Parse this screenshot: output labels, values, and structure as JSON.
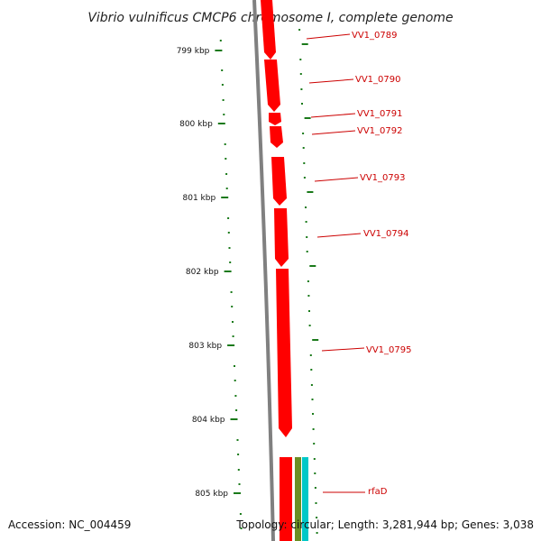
{
  "title": "Vibrio vulnificus CMCP6 chromosome I, complete genome",
  "footer": {
    "accession": "Accession: NC_004459",
    "summary": "Topology: circular; Length: 3,281,944 bp; Genes: 3,038"
  },
  "colors": {
    "gene": "#ff0000",
    "tick": "#1a7a1a",
    "backbone": "#808080",
    "label": "#cc0000",
    "feature_olive": "#6b8e23",
    "feature_cyan": "#00c8c8"
  },
  "ticks": [
    "799 kbp",
    "800 kbp",
    "801 kbp",
    "802 kbp",
    "803 kbp",
    "804 kbp",
    "805 kbp"
  ],
  "genes": [
    {
      "name": "VV1_0789"
    },
    {
      "name": "VV1_0790"
    },
    {
      "name": "VV1_0791"
    },
    {
      "name": "VV1_0792"
    },
    {
      "name": "VV1_0793"
    },
    {
      "name": "VV1_0794"
    },
    {
      "name": "VV1_0795"
    },
    {
      "name": "rfaD"
    }
  ]
}
